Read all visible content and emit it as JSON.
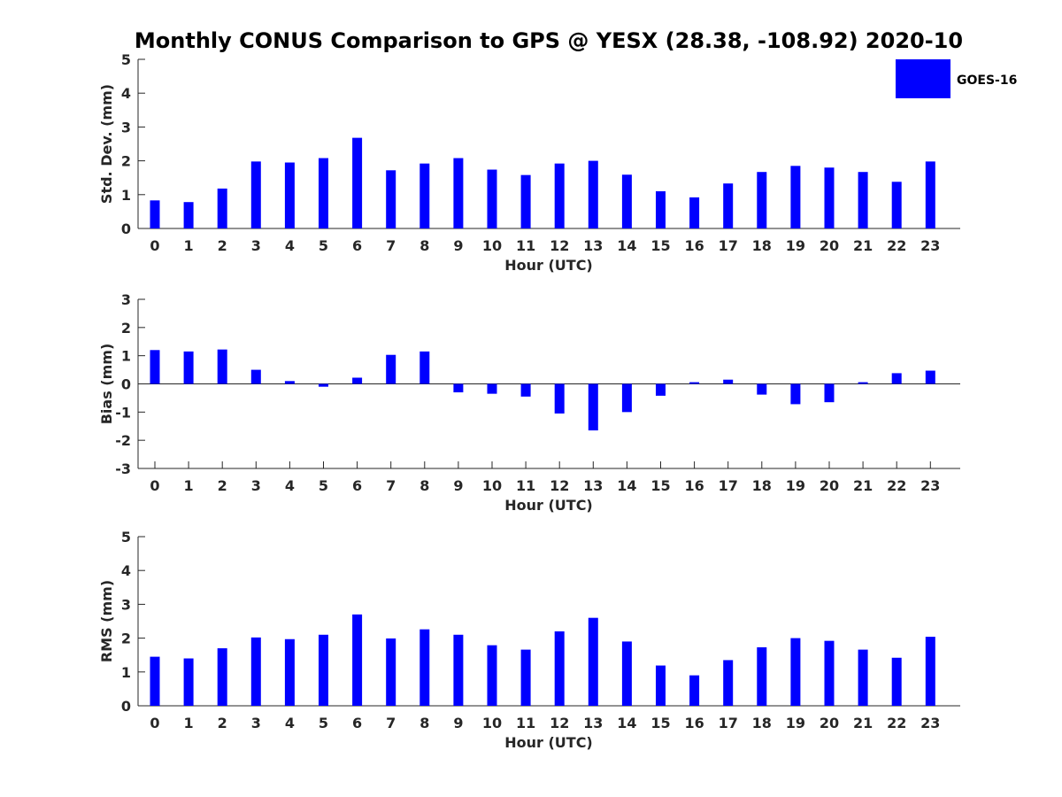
{
  "chart_data": {
    "type": "bar",
    "title": "Monthly CONUS Comparison to GPS @ YESX (28.38, -108.92) 2020-10",
    "legend": {
      "labels": [
        "GOES-16"
      ],
      "placement": "top-right"
    },
    "colors": {
      "bar": "#0000ff",
      "axis": "#262626"
    },
    "panels": [
      {
        "id": "std",
        "ylabel": "Std. Dev. (mm)",
        "xlabel": "Hour (UTC)",
        "ylim": [
          0,
          5
        ],
        "yticks": [
          "0",
          "1",
          "2",
          "3",
          "4",
          "5"
        ],
        "categories": [
          "0",
          "1",
          "2",
          "3",
          "4",
          "5",
          "6",
          "7",
          "8",
          "9",
          "10",
          "11",
          "12",
          "13",
          "14",
          "15",
          "16",
          "17",
          "18",
          "19",
          "20",
          "21",
          "22",
          "23"
        ],
        "series": [
          {
            "name": "GOES-16",
            "values": [
              0.83,
              0.78,
              1.18,
              1.98,
              1.95,
              2.08,
              2.68,
              1.72,
              1.92,
              2.08,
              1.74,
              1.58,
              1.92,
              2.0,
              1.59,
              1.1,
              0.92,
              1.33,
              1.67,
              1.85,
              1.8,
              1.67,
              1.38,
              1.98
            ]
          }
        ]
      },
      {
        "id": "bias",
        "ylabel": "Bias (mm)",
        "xlabel": "Hour (UTC)",
        "ylim": [
          -3,
          3
        ],
        "yticks": [
          "-3",
          "-2",
          "-1",
          "0",
          "1",
          "2",
          "3"
        ],
        "categories": [
          "0",
          "1",
          "2",
          "3",
          "4",
          "5",
          "6",
          "7",
          "8",
          "9",
          "10",
          "11",
          "12",
          "13",
          "14",
          "15",
          "16",
          "17",
          "18",
          "19",
          "20",
          "21",
          "22",
          "23"
        ],
        "series": [
          {
            "name": "GOES-16",
            "values": [
              1.2,
              1.15,
              1.22,
              0.5,
              0.1,
              -0.1,
              0.22,
              1.03,
              1.15,
              -0.3,
              -0.35,
              -0.45,
              -1.05,
              -1.65,
              -1.0,
              -0.42,
              0.06,
              0.15,
              -0.38,
              -0.72,
              -0.65,
              0.06,
              0.38,
              0.47
            ]
          }
        ]
      },
      {
        "id": "rms",
        "ylabel": "RMS (mm)",
        "xlabel": "Hour (UTC)",
        "ylim": [
          0,
          5
        ],
        "yticks": [
          "0",
          "1",
          "2",
          "3",
          "4",
          "5"
        ],
        "categories": [
          "0",
          "1",
          "2",
          "3",
          "4",
          "5",
          "6",
          "7",
          "8",
          "9",
          "10",
          "11",
          "12",
          "13",
          "14",
          "15",
          "16",
          "17",
          "18",
          "19",
          "20",
          "21",
          "22",
          "23"
        ],
        "series": [
          {
            "name": "GOES-16",
            "values": [
              1.45,
              1.4,
              1.7,
              2.02,
              1.97,
              2.1,
              2.7,
              1.99,
              2.26,
              2.1,
              1.79,
              1.66,
              2.2,
              2.6,
              1.9,
              1.19,
              0.9,
              1.35,
              1.73,
              2.0,
              1.92,
              1.66,
              1.42,
              2.04
            ]
          }
        ]
      }
    ]
  }
}
